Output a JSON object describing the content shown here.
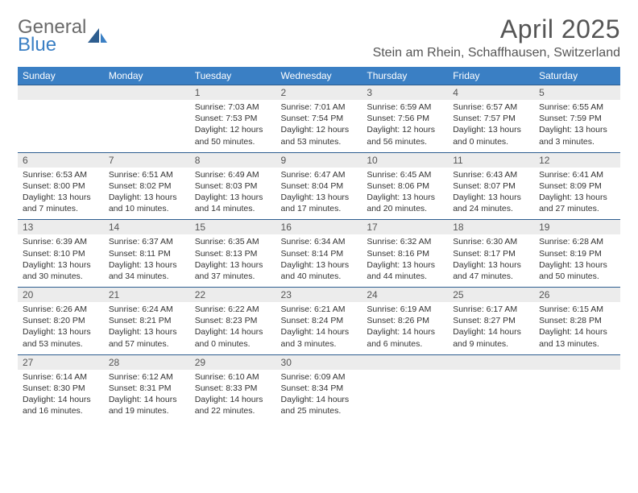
{
  "brand": {
    "word1": "General",
    "word2": "Blue",
    "icon_color": "#2d5d8f"
  },
  "header": {
    "month_title": "April 2025",
    "location": "Stein am Rhein, Schaffhausen, Switzerland"
  },
  "colors": {
    "header_bg": "#3a7fc4",
    "header_text": "#ffffff",
    "row_divider": "#2d5d8f",
    "daynum_bg": "#ececec",
    "page_bg": "#ffffff",
    "body_text": "#333333",
    "title_text": "#555555"
  },
  "typography": {
    "month_title_size_pt": 24,
    "location_size_pt": 12,
    "dow_size_pt": 9,
    "daynum_size_pt": 9,
    "cell_size_pt": 8
  },
  "calendar": {
    "days_of_week": [
      "Sunday",
      "Monday",
      "Tuesday",
      "Wednesday",
      "Thursday",
      "Friday",
      "Saturday"
    ],
    "weeks": [
      [
        null,
        null,
        {
          "n": "1",
          "sunrise": "Sunrise: 7:03 AM",
          "sunset": "Sunset: 7:53 PM",
          "day1": "Daylight: 12 hours",
          "day2": "and 50 minutes."
        },
        {
          "n": "2",
          "sunrise": "Sunrise: 7:01 AM",
          "sunset": "Sunset: 7:54 PM",
          "day1": "Daylight: 12 hours",
          "day2": "and 53 minutes."
        },
        {
          "n": "3",
          "sunrise": "Sunrise: 6:59 AM",
          "sunset": "Sunset: 7:56 PM",
          "day1": "Daylight: 12 hours",
          "day2": "and 56 minutes."
        },
        {
          "n": "4",
          "sunrise": "Sunrise: 6:57 AM",
          "sunset": "Sunset: 7:57 PM",
          "day1": "Daylight: 13 hours",
          "day2": "and 0 minutes."
        },
        {
          "n": "5",
          "sunrise": "Sunrise: 6:55 AM",
          "sunset": "Sunset: 7:59 PM",
          "day1": "Daylight: 13 hours",
          "day2": "and 3 minutes."
        }
      ],
      [
        {
          "n": "6",
          "sunrise": "Sunrise: 6:53 AM",
          "sunset": "Sunset: 8:00 PM",
          "day1": "Daylight: 13 hours",
          "day2": "and 7 minutes."
        },
        {
          "n": "7",
          "sunrise": "Sunrise: 6:51 AM",
          "sunset": "Sunset: 8:02 PM",
          "day1": "Daylight: 13 hours",
          "day2": "and 10 minutes."
        },
        {
          "n": "8",
          "sunrise": "Sunrise: 6:49 AM",
          "sunset": "Sunset: 8:03 PM",
          "day1": "Daylight: 13 hours",
          "day2": "and 14 minutes."
        },
        {
          "n": "9",
          "sunrise": "Sunrise: 6:47 AM",
          "sunset": "Sunset: 8:04 PM",
          "day1": "Daylight: 13 hours",
          "day2": "and 17 minutes."
        },
        {
          "n": "10",
          "sunrise": "Sunrise: 6:45 AM",
          "sunset": "Sunset: 8:06 PM",
          "day1": "Daylight: 13 hours",
          "day2": "and 20 minutes."
        },
        {
          "n": "11",
          "sunrise": "Sunrise: 6:43 AM",
          "sunset": "Sunset: 8:07 PM",
          "day1": "Daylight: 13 hours",
          "day2": "and 24 minutes."
        },
        {
          "n": "12",
          "sunrise": "Sunrise: 6:41 AM",
          "sunset": "Sunset: 8:09 PM",
          "day1": "Daylight: 13 hours",
          "day2": "and 27 minutes."
        }
      ],
      [
        {
          "n": "13",
          "sunrise": "Sunrise: 6:39 AM",
          "sunset": "Sunset: 8:10 PM",
          "day1": "Daylight: 13 hours",
          "day2": "and 30 minutes."
        },
        {
          "n": "14",
          "sunrise": "Sunrise: 6:37 AM",
          "sunset": "Sunset: 8:11 PM",
          "day1": "Daylight: 13 hours",
          "day2": "and 34 minutes."
        },
        {
          "n": "15",
          "sunrise": "Sunrise: 6:35 AM",
          "sunset": "Sunset: 8:13 PM",
          "day1": "Daylight: 13 hours",
          "day2": "and 37 minutes."
        },
        {
          "n": "16",
          "sunrise": "Sunrise: 6:34 AM",
          "sunset": "Sunset: 8:14 PM",
          "day1": "Daylight: 13 hours",
          "day2": "and 40 minutes."
        },
        {
          "n": "17",
          "sunrise": "Sunrise: 6:32 AM",
          "sunset": "Sunset: 8:16 PM",
          "day1": "Daylight: 13 hours",
          "day2": "and 44 minutes."
        },
        {
          "n": "18",
          "sunrise": "Sunrise: 6:30 AM",
          "sunset": "Sunset: 8:17 PM",
          "day1": "Daylight: 13 hours",
          "day2": "and 47 minutes."
        },
        {
          "n": "19",
          "sunrise": "Sunrise: 6:28 AM",
          "sunset": "Sunset: 8:19 PM",
          "day1": "Daylight: 13 hours",
          "day2": "and 50 minutes."
        }
      ],
      [
        {
          "n": "20",
          "sunrise": "Sunrise: 6:26 AM",
          "sunset": "Sunset: 8:20 PM",
          "day1": "Daylight: 13 hours",
          "day2": "and 53 minutes."
        },
        {
          "n": "21",
          "sunrise": "Sunrise: 6:24 AM",
          "sunset": "Sunset: 8:21 PM",
          "day1": "Daylight: 13 hours",
          "day2": "and 57 minutes."
        },
        {
          "n": "22",
          "sunrise": "Sunrise: 6:22 AM",
          "sunset": "Sunset: 8:23 PM",
          "day1": "Daylight: 14 hours",
          "day2": "and 0 minutes."
        },
        {
          "n": "23",
          "sunrise": "Sunrise: 6:21 AM",
          "sunset": "Sunset: 8:24 PM",
          "day1": "Daylight: 14 hours",
          "day2": "and 3 minutes."
        },
        {
          "n": "24",
          "sunrise": "Sunrise: 6:19 AM",
          "sunset": "Sunset: 8:26 PM",
          "day1": "Daylight: 14 hours",
          "day2": "and 6 minutes."
        },
        {
          "n": "25",
          "sunrise": "Sunrise: 6:17 AM",
          "sunset": "Sunset: 8:27 PM",
          "day1": "Daylight: 14 hours",
          "day2": "and 9 minutes."
        },
        {
          "n": "26",
          "sunrise": "Sunrise: 6:15 AM",
          "sunset": "Sunset: 8:28 PM",
          "day1": "Daylight: 14 hours",
          "day2": "and 13 minutes."
        }
      ],
      [
        {
          "n": "27",
          "sunrise": "Sunrise: 6:14 AM",
          "sunset": "Sunset: 8:30 PM",
          "day1": "Daylight: 14 hours",
          "day2": "and 16 minutes."
        },
        {
          "n": "28",
          "sunrise": "Sunrise: 6:12 AM",
          "sunset": "Sunset: 8:31 PM",
          "day1": "Daylight: 14 hours",
          "day2": "and 19 minutes."
        },
        {
          "n": "29",
          "sunrise": "Sunrise: 6:10 AM",
          "sunset": "Sunset: 8:33 PM",
          "day1": "Daylight: 14 hours",
          "day2": "and 22 minutes."
        },
        {
          "n": "30",
          "sunrise": "Sunrise: 6:09 AM",
          "sunset": "Sunset: 8:34 PM",
          "day1": "Daylight: 14 hours",
          "day2": "and 25 minutes."
        },
        null,
        null,
        null
      ]
    ]
  }
}
